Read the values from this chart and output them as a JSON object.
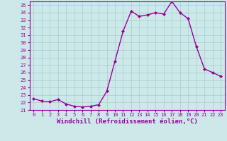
{
  "hours": [
    0,
    1,
    2,
    3,
    4,
    5,
    6,
    7,
    8,
    9,
    10,
    11,
    12,
    13,
    14,
    15,
    16,
    17,
    18,
    19,
    20,
    21,
    22,
    23
  ],
  "values": [
    22.5,
    22.2,
    22.1,
    22.4,
    21.8,
    21.5,
    21.4,
    21.5,
    21.7,
    23.5,
    27.5,
    31.5,
    34.2,
    33.5,
    33.7,
    34.0,
    33.8,
    35.5,
    34.0,
    33.2,
    29.5,
    26.5,
    26.0,
    25.5
  ],
  "line_color": "#990099",
  "marker": "D",
  "marker_size": 2,
  "bg_color": "#cce8e8",
  "grid_color": "#aacccc",
  "xlabel": "Windchill (Refroidissement éolien,°C)",
  "xlim_min": -0.5,
  "xlim_max": 23.5,
  "ylim_min": 21,
  "ylim_max": 35.5,
  "yticks": [
    21,
    22,
    23,
    24,
    25,
    26,
    27,
    28,
    29,
    30,
    31,
    32,
    33,
    34,
    35
  ],
  "xticks": [
    0,
    1,
    2,
    3,
    4,
    5,
    6,
    7,
    8,
    9,
    10,
    11,
    12,
    13,
    14,
    15,
    16,
    17,
    18,
    19,
    20,
    21,
    22,
    23
  ],
  "tick_color": "#990099",
  "font_size_ticks": 5,
  "font_size_xlabel": 6.5,
  "line_width": 1.0
}
